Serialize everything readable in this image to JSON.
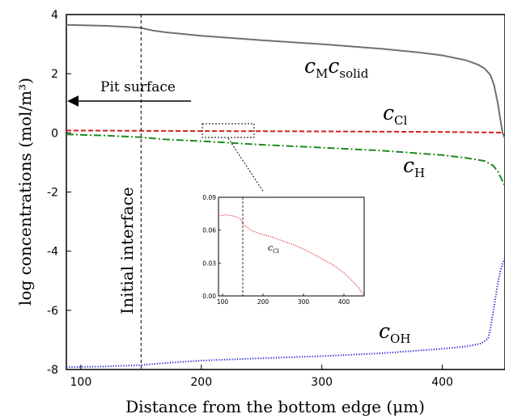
{
  "chart_data": [
    {
      "type": "line",
      "xlabel": "Distance from the bottom edge (μm)",
      "ylabel": "log concentrations (mol/m³)",
      "xlim": [
        88,
        452
      ],
      "ylim": [
        -8,
        4
      ],
      "x_ticks": [
        "100",
        "200",
        "300",
        "400"
      ],
      "y_ticks": [
        "-8",
        "-6",
        "-4",
        "-2",
        "0",
        "2",
        "4"
      ],
      "grid": false,
      "annotations": {
        "pit_surface": "Pit surface",
        "initial_interface": "Initial interface",
        "interface_x": 150
      },
      "series": [
        {
          "name": "cMcsolid",
          "label_main": "c",
          "label_sub": "M",
          "label_main2": "c",
          "label_sub2": "solid",
          "color": "#707070",
          "style": "solid",
          "x": [
            88,
            120,
            140,
            150,
            160,
            170,
            200,
            250,
            300,
            350,
            380,
            400,
            420,
            430,
            435,
            440,
            443,
            446,
            448,
            450,
            452
          ],
          "y": [
            3.65,
            3.62,
            3.58,
            3.55,
            3.46,
            3.4,
            3.28,
            3.13,
            3.0,
            2.84,
            2.72,
            2.62,
            2.45,
            2.3,
            2.18,
            1.95,
            1.6,
            1.0,
            0.5,
            0.0,
            -0.2
          ]
        },
        {
          "name": "cCl",
          "label_main": "c",
          "label_sub": "Cl",
          "color": "#d62020",
          "style": "dashed",
          "x": [
            88,
            150,
            200,
            300,
            400,
            450
          ],
          "y": [
            0.08,
            0.07,
            0.06,
            0.05,
            0.03,
            0.01
          ]
        },
        {
          "name": "cH",
          "label_main": "c",
          "label_sub": "H",
          "color": "#1e8a1e",
          "style": "dashdot",
          "x": [
            88,
            120,
            150,
            170,
            200,
            250,
            300,
            350,
            400,
            420,
            435,
            442,
            446,
            449,
            452
          ],
          "y": [
            -0.05,
            -0.09,
            -0.15,
            -0.22,
            -0.28,
            -0.4,
            -0.5,
            -0.6,
            -0.75,
            -0.85,
            -0.95,
            -1.1,
            -1.3,
            -1.55,
            -1.8
          ]
        },
        {
          "name": "cOH",
          "label_main": "c",
          "label_sub": "OH",
          "color": "#1f1fd6",
          "style": "dotted",
          "x": [
            88,
            120,
            150,
            170,
            200,
            250,
            300,
            350,
            400,
            420,
            432,
            438,
            440,
            442,
            444,
            446,
            448,
            450,
            452
          ],
          "y": [
            -7.92,
            -7.9,
            -7.85,
            -7.78,
            -7.7,
            -7.62,
            -7.55,
            -7.45,
            -7.3,
            -7.22,
            -7.12,
            -6.95,
            -6.6,
            -6.1,
            -5.6,
            -5.1,
            -4.7,
            -4.4,
            -4.25
          ]
        }
      ]
    },
    {
      "type": "line",
      "inset": true,
      "xlim": [
        90,
        450
      ],
      "ylim": [
        0.0,
        0.09
      ],
      "x_ticks": [
        "100",
        "200",
        "300",
        "400"
      ],
      "y_ticks": [
        "0.00",
        "0.03",
        "0.06",
        "0.09"
      ],
      "interface_x": 150,
      "series": [
        {
          "name": "cCl",
          "label_main": "c",
          "label_sub": "Cl",
          "color": "#d62020",
          "style": "dotted",
          "x": [
            90,
            110,
            125,
            135,
            145,
            150,
            155,
            160,
            170,
            190,
            220,
            250,
            280,
            310,
            340,
            370,
            400,
            420,
            435,
            445,
            450
          ],
          "y": [
            0.073,
            0.074,
            0.073,
            0.072,
            0.07,
            0.066,
            0.064,
            0.063,
            0.06,
            0.057,
            0.054,
            0.05,
            0.046,
            0.041,
            0.035,
            0.029,
            0.021,
            0.014,
            0.008,
            0.003,
            0.0
          ]
        }
      ]
    }
  ]
}
